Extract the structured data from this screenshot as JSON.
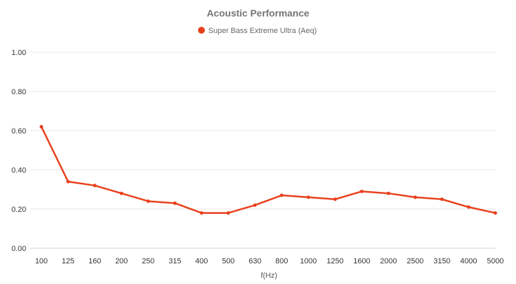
{
  "chart_data": {
    "type": "line",
    "title": "Acoustic Performance",
    "xlabel": "f(Hz)",
    "ylabel": "",
    "categories": [
      "100",
      "125",
      "160",
      "200",
      "250",
      "315",
      "400",
      "500",
      "630",
      "800",
      "1000",
      "1250",
      "1600",
      "2000",
      "2500",
      "3150",
      "4000",
      "5000"
    ],
    "series": [
      {
        "name": "Super Bass Extreme Ultra (Aeq)",
        "color": "#e8401c",
        "values": [
          0.62,
          0.34,
          0.32,
          0.28,
          0.24,
          0.23,
          0.18,
          0.18,
          0.22,
          0.27,
          0.26,
          0.25,
          0.29,
          0.28,
          0.26,
          0.25,
          0.21,
          0.18
        ]
      }
    ],
    "ylim": [
      0,
      1
    ],
    "yticks": [
      "0.00",
      "0.20",
      "0.40",
      "0.60",
      "0.80",
      "1.00"
    ],
    "grid": true,
    "legend_position": "top-center"
  }
}
